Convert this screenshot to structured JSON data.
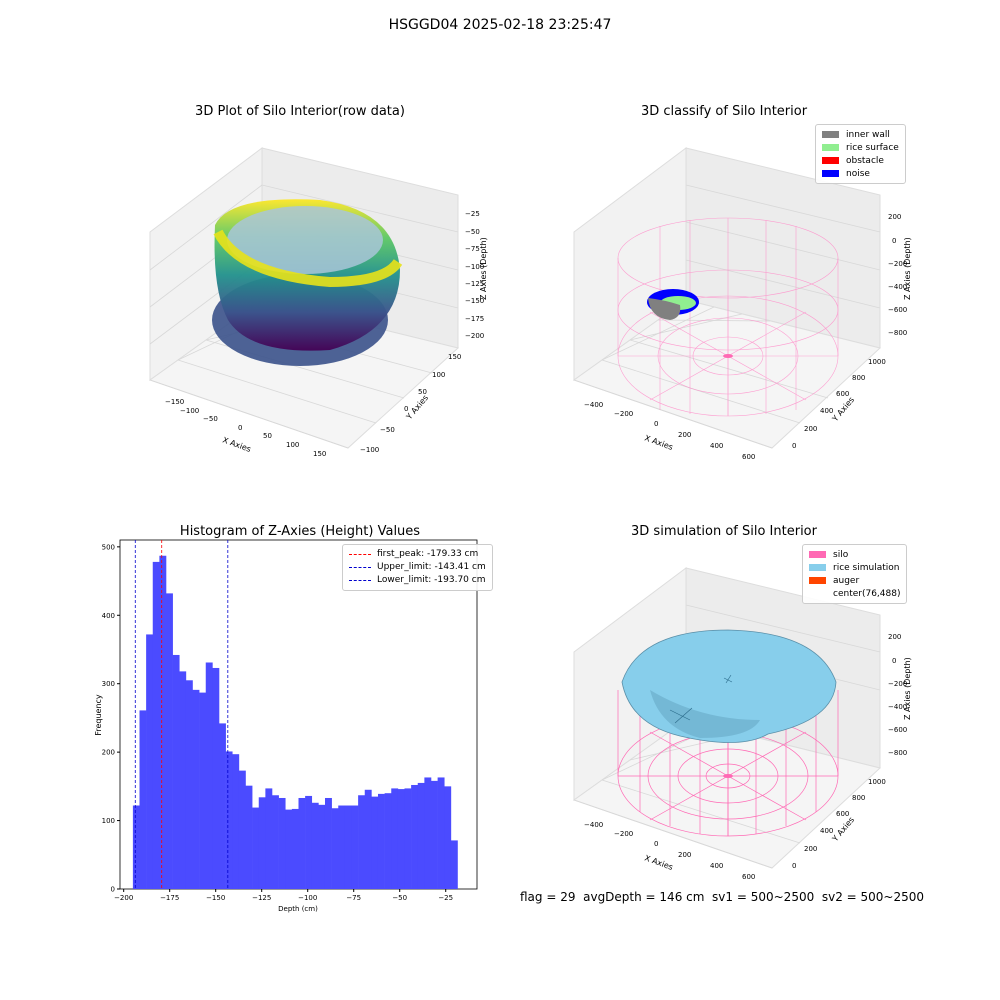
{
  "suptitle": "HSGGD04 2025-02-18 23:25:47",
  "panels": {
    "raw": {
      "title": "3D Plot of Silo Interior(row data)",
      "xlabel": "X Axies",
      "ylabel": "Y Axies",
      "zlabel": "Z Axies (Depth)",
      "xticks": [
        "−150",
        "−100",
        "−50",
        "0",
        "50",
        "100",
        "150"
      ],
      "yticks": [
        "−100",
        "−50",
        "0",
        "50",
        "100",
        "150"
      ],
      "zticks": [
        "−25",
        "−50",
        "−75",
        "−100",
        "−125",
        "−150",
        "−175",
        "−200"
      ]
    },
    "classify": {
      "title": "3D classify of Silo Interior",
      "xlabel": "X Axies",
      "ylabel": "Y Axies",
      "zlabel": "Z Axies (Depth)",
      "xticks": [
        "−400",
        "−200",
        "0",
        "200",
        "400",
        "600"
      ],
      "yticks": [
        "0",
        "200",
        "400",
        "600",
        "800",
        "1000"
      ],
      "zticks": [
        "200",
        "0",
        "−200",
        "−400",
        "−600",
        "−800"
      ],
      "legend": [
        {
          "label": "inner wall",
          "color": "#808080"
        },
        {
          "label": "rice surface",
          "color": "#90ee90"
        },
        {
          "label": "obstacle",
          "color": "#ff0000"
        },
        {
          "label": "noise",
          "color": "#0000ff"
        }
      ]
    },
    "simulation": {
      "title": "3D simulation of Silo Interior",
      "xlabel": "X Axies",
      "ylabel": "Y Axies",
      "zlabel": "Z Axies (Depth)",
      "xticks": [
        "−400",
        "−200",
        "0",
        "200",
        "400",
        "600"
      ],
      "yticks": [
        "0",
        "200",
        "400",
        "600",
        "800",
        "1000"
      ],
      "zticks": [
        "200",
        "0",
        "−200",
        "−400",
        "−600",
        "−800"
      ],
      "legend": [
        {
          "label": "silo",
          "color": "#ff69b4"
        },
        {
          "label": "rice simulation",
          "color": "#87ceeb"
        },
        {
          "label": "auger",
          "color": "#ff4500"
        },
        {
          "label": "center(76,488)",
          "color": ""
        }
      ]
    }
  },
  "footer": "flag = 29  avgDepth = 146 cm  sv1 = 500~2500  sv2 = 500~2500",
  "chart_data": [
    {
      "type": "scatter",
      "title": "3D Plot of Silo Interior(row data)",
      "xlabel": "X Axies",
      "ylabel": "Y Axies",
      "zlabel": "Z Axies (Depth)",
      "xlim": [
        -170,
        170
      ],
      "ylim": [
        -110,
        160
      ],
      "zlim": [
        -205,
        -15
      ],
      "colormap": "viridis"
    },
    {
      "type": "scatter",
      "title": "3D classify of Silo Interior",
      "xlabel": "X Axies",
      "ylabel": "Y Axies",
      "zlabel": "Z Axies (Depth)",
      "series": [
        {
          "name": "inner wall",
          "color": "#808080"
        },
        {
          "name": "rice surface",
          "color": "#90ee90"
        },
        {
          "name": "obstacle",
          "color": "#ff0000"
        },
        {
          "name": "noise",
          "color": "#0000ff"
        }
      ]
    },
    {
      "type": "bar",
      "title": "Histogram of Z-Axies (Height) Values",
      "xlabel": "Depth (cm)",
      "ylabel": "Frequency",
      "xlim": [
        -202,
        -8
      ],
      "ylim": [
        0,
        510
      ],
      "xticks": [
        -200,
        -175,
        -150,
        -125,
        -100,
        -75,
        -50,
        -25
      ],
      "yticks": [
        0,
        100,
        200,
        300,
        400,
        500
      ],
      "bin_start": -195,
      "bin_width": 3.6,
      "values": [
        122,
        261,
        372,
        478,
        487,
        432,
        342,
        318,
        305,
        291,
        287,
        331,
        323,
        242,
        201,
        197,
        173,
        151,
        119,
        134,
        147,
        137,
        133,
        116,
        117,
        133,
        136,
        126,
        123,
        133,
        118,
        122,
        122,
        122,
        137,
        145,
        135,
        139,
        140,
        147,
        146,
        147,
        152,
        155,
        163,
        158,
        163,
        150,
        71
      ],
      "bar_color": "#4b4bff",
      "vlines": [
        {
          "name": "first_peak: -179.33 cm",
          "x": -179.33,
          "color": "#ff0000"
        },
        {
          "name": "Upper_limit: -143.41 cm",
          "x": -143.41,
          "color": "#0000cd"
        },
        {
          "name": "Lower_limit: -193.70 cm",
          "x": -193.7,
          "color": "#0000cd"
        }
      ]
    },
    {
      "type": "area",
      "title": "3D simulation of Silo Interior",
      "xlabel": "X Axies",
      "ylabel": "Y Axies",
      "zlabel": "Z Axies (Depth)",
      "series": [
        {
          "name": "silo",
          "color": "#ff69b4"
        },
        {
          "name": "rice simulation",
          "color": "#87ceeb"
        },
        {
          "name": "auger",
          "color": "#ff4500"
        },
        {
          "name": "center(76,488)",
          "color": ""
        }
      ]
    }
  ]
}
